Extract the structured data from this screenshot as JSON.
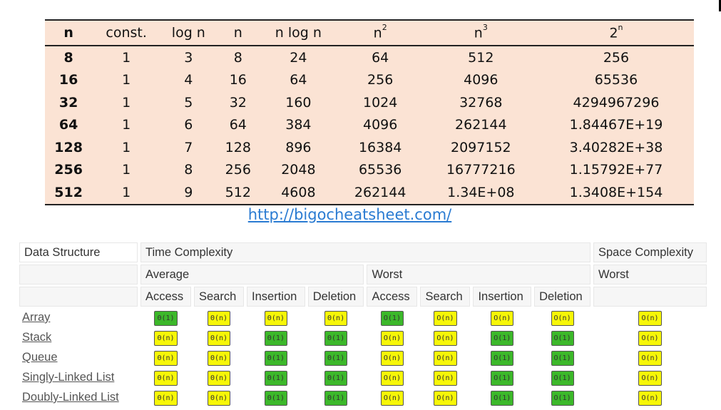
{
  "growth_table": {
    "headers": {
      "n": "n",
      "const": "const.",
      "logn": "log n",
      "nn": "n",
      "nlogn": "n log n",
      "n2_base": "n",
      "n2_exp": "2",
      "n3_base": "n",
      "n3_exp": "3",
      "pow_base": "2",
      "pow_exp": "n"
    },
    "rows": [
      [
        "8",
        "1",
        "3",
        "8",
        "24",
        "64",
        "512",
        "256"
      ],
      [
        "16",
        "1",
        "4",
        "16",
        "64",
        "256",
        "4096",
        "65536"
      ],
      [
        "32",
        "1",
        "5",
        "32",
        "160",
        "1024",
        "32768",
        "4294967296"
      ],
      [
        "64",
        "1",
        "6",
        "64",
        "384",
        "4096",
        "262144",
        "1.84467E+19"
      ],
      [
        "128",
        "1",
        "7",
        "128",
        "896",
        "16384",
        "2097152",
        "3.40282E+38"
      ],
      [
        "256",
        "1",
        "8",
        "256",
        "2048",
        "65536",
        "16777216",
        "1.15792E+77"
      ],
      [
        "512",
        "1",
        "9",
        "512",
        "4608",
        "262144",
        "1.34E+08",
        "1.3408E+154"
      ]
    ]
  },
  "link": {
    "text": "http://bigocheatsheet.com/"
  },
  "bigo": {
    "header1": {
      "ds": "Data Structure",
      "time": "Time Complexity",
      "space": "Space Complexity"
    },
    "header2": {
      "avg": "Average",
      "worst": "Worst",
      "space_worst": "Worst"
    },
    "header3": [
      "Access",
      "Search",
      "Insertion",
      "Deletion",
      "Access",
      "Search",
      "Insertion",
      "Deletion"
    ],
    "colors": {
      "green": "#3cb82a",
      "yellow": "#f7f707"
    },
    "rows": [
      {
        "name": "Array",
        "cells": [
          [
            "Θ(1)",
            "green"
          ],
          [
            "Θ(n)",
            "yellow"
          ],
          [
            "Θ(n)",
            "yellow"
          ],
          [
            "Θ(n)",
            "yellow"
          ],
          [
            "O(1)",
            "green"
          ],
          [
            "O(n)",
            "yellow"
          ],
          [
            "O(n)",
            "yellow"
          ],
          [
            "O(n)",
            "yellow"
          ],
          [
            "O(n)",
            "yellow"
          ]
        ]
      },
      {
        "name": "Stack",
        "cells": [
          [
            "Θ(n)",
            "yellow"
          ],
          [
            "Θ(n)",
            "yellow"
          ],
          [
            "Θ(1)",
            "green"
          ],
          [
            "Θ(1)",
            "green"
          ],
          [
            "O(n)",
            "yellow"
          ],
          [
            "O(n)",
            "yellow"
          ],
          [
            "O(1)",
            "green"
          ],
          [
            "O(1)",
            "green"
          ],
          [
            "O(n)",
            "yellow"
          ]
        ]
      },
      {
        "name": "Queue",
        "cells": [
          [
            "Θ(n)",
            "yellow"
          ],
          [
            "Θ(n)",
            "yellow"
          ],
          [
            "Θ(1)",
            "green"
          ],
          [
            "Θ(1)",
            "green"
          ],
          [
            "O(n)",
            "yellow"
          ],
          [
            "O(n)",
            "yellow"
          ],
          [
            "O(1)",
            "green"
          ],
          [
            "O(1)",
            "green"
          ],
          [
            "O(n)",
            "yellow"
          ]
        ]
      },
      {
        "name": "Singly-Linked List",
        "cells": [
          [
            "Θ(n)",
            "yellow"
          ],
          [
            "Θ(n)",
            "yellow"
          ],
          [
            "Θ(1)",
            "green"
          ],
          [
            "Θ(1)",
            "green"
          ],
          [
            "O(n)",
            "yellow"
          ],
          [
            "O(n)",
            "yellow"
          ],
          [
            "O(1)",
            "green"
          ],
          [
            "O(1)",
            "green"
          ],
          [
            "O(n)",
            "yellow"
          ]
        ]
      },
      {
        "name": "Doubly-Linked List",
        "cells": [
          [
            "Θ(n)",
            "yellow"
          ],
          [
            "Θ(n)",
            "yellow"
          ],
          [
            "Θ(1)",
            "green"
          ],
          [
            "Θ(1)",
            "green"
          ],
          [
            "O(n)",
            "yellow"
          ],
          [
            "O(n)",
            "yellow"
          ],
          [
            "O(1)",
            "green"
          ],
          [
            "O(1)",
            "green"
          ],
          [
            "O(n)",
            "yellow"
          ]
        ]
      }
    ]
  }
}
